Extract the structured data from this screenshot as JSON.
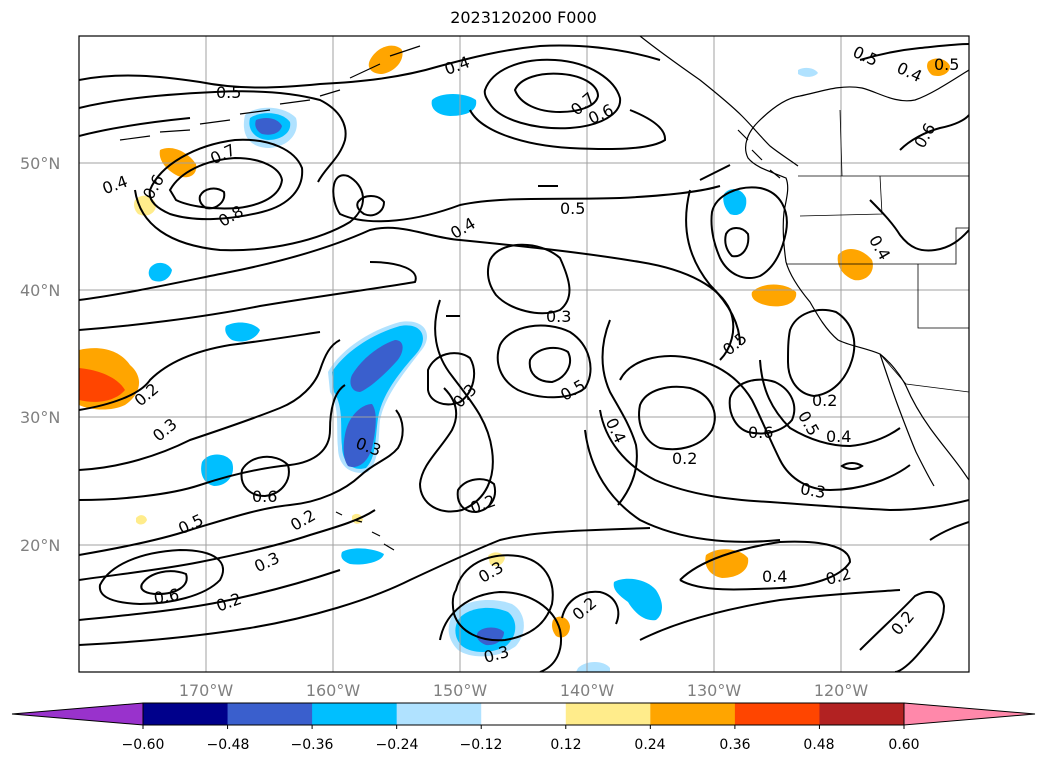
{
  "title": "2023120200 F000",
  "map": {
    "lat_labels": [
      "50°N",
      "40°N",
      "30°N",
      "20°N"
    ],
    "lon_labels": [
      "170°W",
      "160°W",
      "150°W",
      "140°W",
      "130°W",
      "120°W"
    ],
    "gridline_color": "#a0a0a0"
  },
  "contour_labels": [
    "0.4",
    "0.5",
    "0.7",
    "0.6",
    "0.5",
    "0.4",
    "0.5",
    "0.4",
    "0.6",
    "0.7",
    "0.8",
    "0.4",
    "0.6",
    "0.5",
    "0.4",
    "0.3",
    "0.2",
    "0.3",
    "0.3",
    "0.3",
    "0.5",
    "0.4",
    "0.2",
    "0.5",
    "0.2",
    "0.6",
    "0.5",
    "0.4",
    "0.3",
    "0.6",
    "0.5",
    "0.3",
    "0.2",
    "0.6",
    "0.2",
    "0.3",
    "0.2",
    "0.4",
    "0.2",
    "0.2",
    "0.3",
    "0.2"
  ],
  "colorbar": {
    "tick_labels": [
      "−0.60",
      "−0.48",
      "−0.36",
      "−0.24",
      "−0.12",
      "0.12",
      "0.24",
      "0.36",
      "0.48",
      "0.60"
    ],
    "under_color": "#9932cc",
    "over_color": "#ff88aa",
    "colors": [
      "#00008b",
      "#3a5fcd",
      "#00bfff",
      "#b0e2ff",
      "#ffffff",
      "#ffec8b",
      "#ffa500",
      "#ff4500",
      "#b22222"
    ]
  }
}
